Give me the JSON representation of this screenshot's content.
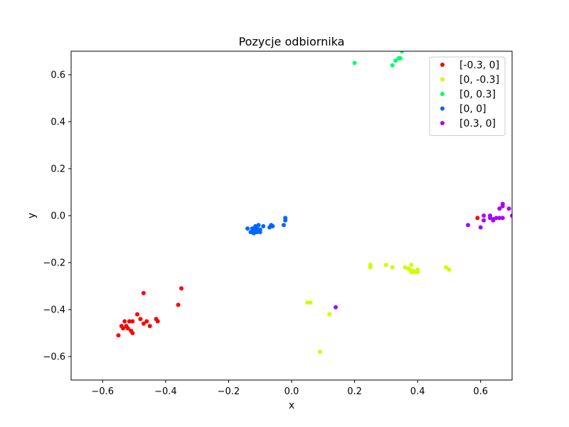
{
  "chart_data": {
    "type": "scatter",
    "title": "Pozycje odbiornika",
    "xlabel": "x",
    "ylabel": "y",
    "xlim": [
      -0.7,
      0.7
    ],
    "ylim": [
      -0.7,
      0.7
    ],
    "xticks": [
      -0.6,
      -0.4,
      -0.2,
      0.0,
      0.2,
      0.4,
      0.6
    ],
    "yticks": [
      -0.6,
      -0.4,
      -0.2,
      0.0,
      0.2,
      0.4,
      0.6
    ],
    "xtick_labels": [
      "−0.6",
      "−0.4",
      "−0.2",
      "0.0",
      "0.2",
      "0.4",
      "0.6"
    ],
    "ytick_labels": [
      "−0.6",
      "−0.4",
      "−0.2",
      "0.0",
      "0.2",
      "0.4",
      "0.6"
    ],
    "legend_position": "top-right",
    "grid": false,
    "series": [
      {
        "name": "[-0.3, 0]",
        "color": "#ff0000",
        "points": [
          [
            -0.55,
            -0.51
          ],
          [
            -0.54,
            -0.47
          ],
          [
            -0.535,
            -0.48
          ],
          [
            -0.53,
            -0.45
          ],
          [
            -0.525,
            -0.47
          ],
          [
            -0.52,
            -0.48
          ],
          [
            -0.515,
            -0.45
          ],
          [
            -0.51,
            -0.49
          ],
          [
            -0.505,
            -0.45
          ],
          [
            -0.505,
            -0.5
          ],
          [
            -0.49,
            -0.42
          ],
          [
            -0.48,
            -0.44
          ],
          [
            -0.47,
            -0.46
          ],
          [
            -0.47,
            -0.33
          ],
          [
            -0.46,
            -0.45
          ],
          [
            -0.45,
            -0.47
          ],
          [
            -0.43,
            -0.44
          ],
          [
            -0.425,
            -0.45
          ],
          [
            -0.36,
            -0.38
          ],
          [
            -0.35,
            -0.31
          ],
          [
            0.59,
            -0.01
          ]
        ]
      },
      {
        "name": "[0, -0.3]",
        "color": "#ccff00",
        "points": [
          [
            0.05,
            -0.37
          ],
          [
            0.06,
            -0.37
          ],
          [
            0.09,
            -0.58
          ],
          [
            0.12,
            -0.42
          ],
          [
            0.25,
            -0.21
          ],
          [
            0.25,
            -0.22
          ],
          [
            0.3,
            -0.21
          ],
          [
            0.32,
            -0.22
          ],
          [
            0.36,
            -0.22
          ],
          [
            0.37,
            -0.225
          ],
          [
            0.375,
            -0.23
          ],
          [
            0.38,
            -0.21
          ],
          [
            0.38,
            -0.24
          ],
          [
            0.385,
            -0.235
          ],
          [
            0.39,
            -0.24
          ],
          [
            0.4,
            -0.23
          ],
          [
            0.4,
            -0.24
          ],
          [
            0.49,
            -0.22
          ],
          [
            0.5,
            -0.23
          ]
        ]
      },
      {
        "name": "[0, 0.3]",
        "color": "#00ff66",
        "points": [
          [
            0.2,
            0.65
          ],
          [
            0.32,
            0.64
          ],
          [
            0.33,
            0.66
          ],
          [
            0.34,
            0.67
          ],
          [
            0.345,
            0.67
          ],
          [
            0.35,
            0.7
          ]
        ]
      },
      {
        "name": "[0, 0]",
        "color": "#0066ff",
        "points": [
          [
            -0.14,
            -0.055
          ],
          [
            -0.13,
            -0.07
          ],
          [
            -0.125,
            -0.055
          ],
          [
            -0.12,
            -0.06
          ],
          [
            -0.12,
            -0.075
          ],
          [
            -0.115,
            -0.045
          ],
          [
            -0.11,
            -0.055
          ],
          [
            -0.11,
            -0.07
          ],
          [
            -0.105,
            -0.04
          ],
          [
            -0.1,
            -0.06
          ],
          [
            -0.1,
            -0.07
          ],
          [
            -0.09,
            -0.045
          ],
          [
            -0.07,
            -0.05
          ],
          [
            -0.065,
            -0.04
          ],
          [
            -0.06,
            -0.045
          ],
          [
            -0.025,
            -0.04
          ],
          [
            -0.02,
            -0.01
          ],
          [
            -0.02,
            -0.02
          ]
        ]
      },
      {
        "name": "[0.3, 0]",
        "color": "#aa00ff",
        "points": [
          [
            0.14,
            -0.39
          ],
          [
            0.56,
            -0.04
          ],
          [
            0.6,
            -0.05
          ],
          [
            0.61,
            0.0
          ],
          [
            0.61,
            -0.02
          ],
          [
            0.63,
            0.0
          ],
          [
            0.63,
            -0.01
          ],
          [
            0.64,
            -0.015
          ],
          [
            0.64,
            -0.02
          ],
          [
            0.65,
            -0.01
          ],
          [
            0.66,
            -0.01
          ],
          [
            0.66,
            0.03
          ],
          [
            0.67,
            0.04
          ],
          [
            0.67,
            0.05
          ],
          [
            0.67,
            -0.01
          ],
          [
            0.69,
            0.03
          ],
          [
            0.7,
            0.0
          ]
        ]
      }
    ]
  }
}
